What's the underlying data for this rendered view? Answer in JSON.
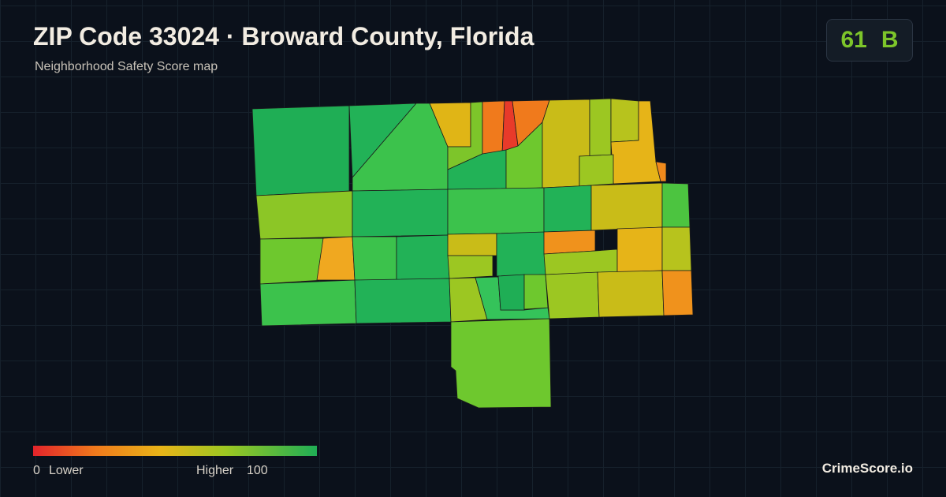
{
  "header": {
    "title": "ZIP Code 33024 · Broward County, Florida",
    "subtitle": "Neighborhood Safety Score map"
  },
  "score": {
    "value": 61,
    "grade": "B"
  },
  "legend": {
    "min": 0,
    "min_label": "Lower",
    "max_label": "Higher",
    "max": 100
  },
  "brand": "CrimeScore.io"
}
